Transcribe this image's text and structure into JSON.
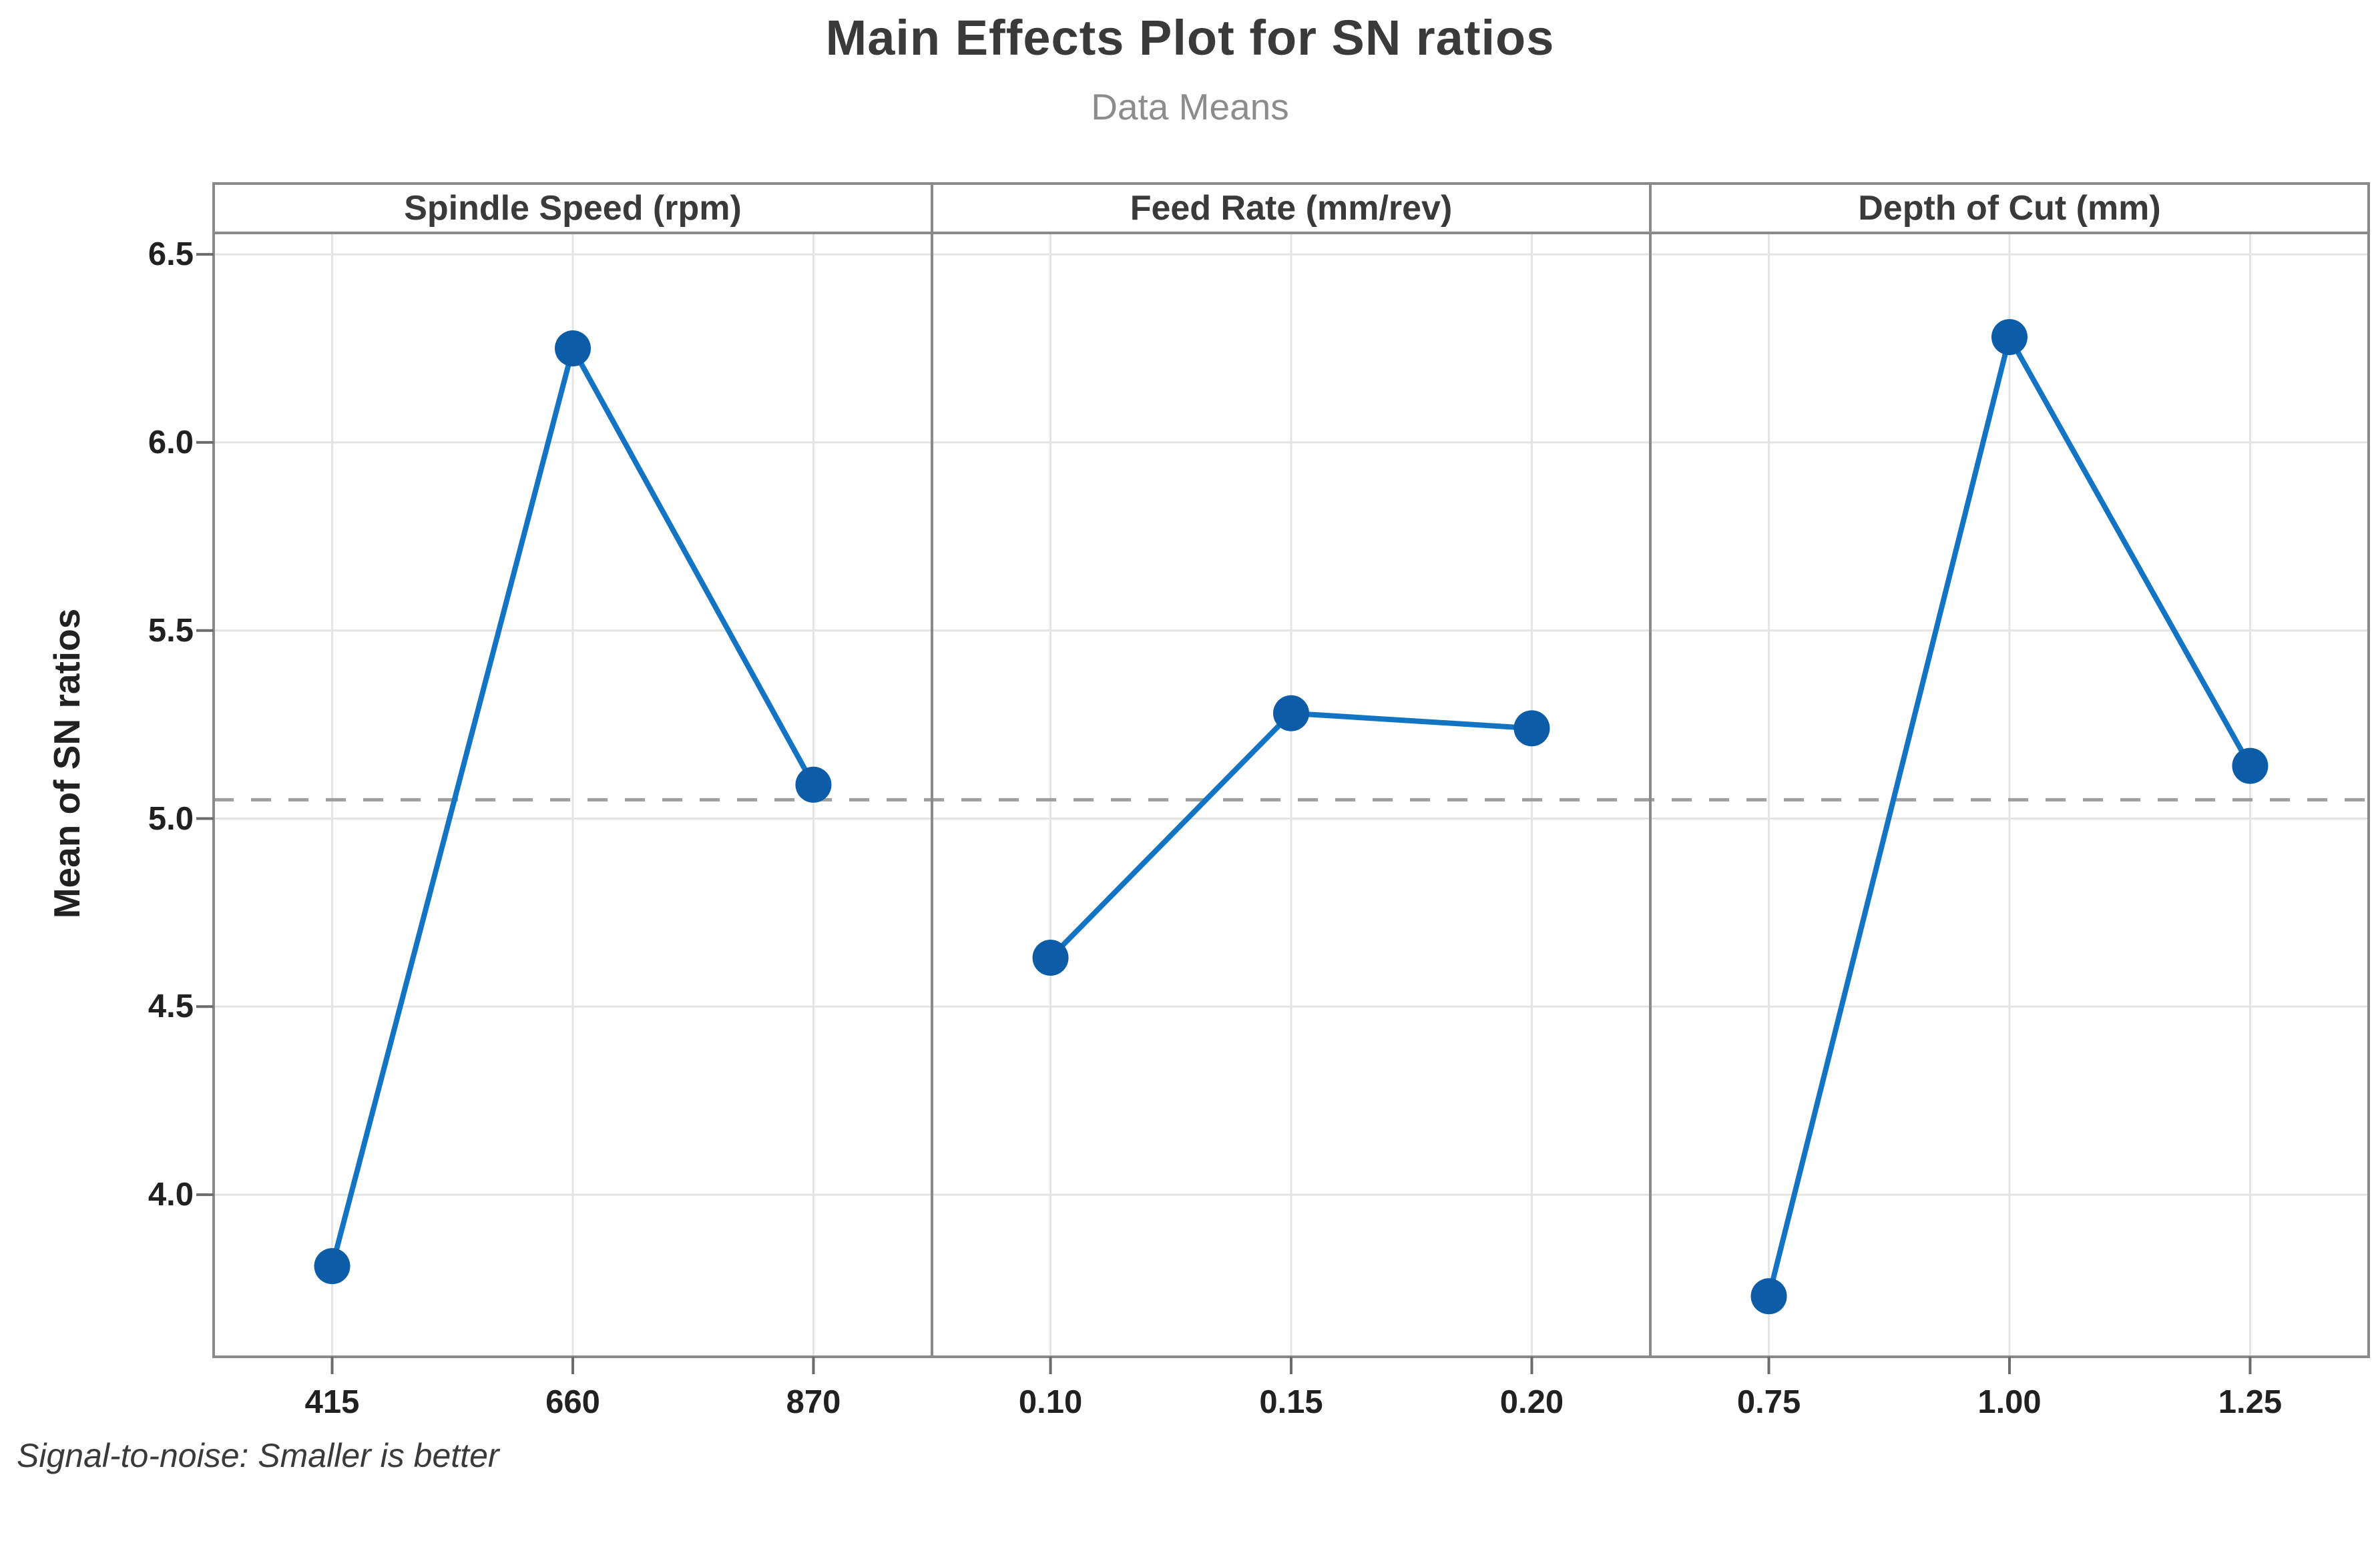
{
  "chart_data": {
    "type": "line",
    "title": "Main Effects Plot for SN ratios",
    "subtitle": "Data Means",
    "ylabel": "Mean of SN ratios",
    "footnote": "Signal-to-noise: Smaller is better",
    "ylim": [
      3.569,
      6.557
    ],
    "yticks": [
      "6.5",
      "6.0",
      "5.5",
      "5.0",
      "4.5",
      "4.0"
    ],
    "reference_line_mean": 5.05,
    "grid": true,
    "legend": "none",
    "panels": [
      {
        "label": "Spindle Speed (rpm)",
        "categories": [
          "415",
          "660",
          "870"
        ],
        "values": [
          3.81,
          6.25,
          5.09
        ]
      },
      {
        "label": "Feed Rate (mm/rev)",
        "categories": [
          "0.10",
          "0.15",
          "0.20"
        ],
        "values": [
          4.63,
          5.28,
          5.24
        ]
      },
      {
        "label": "Depth of Cut (mm)",
        "categories": [
          "0.75",
          "1.00",
          "1.25"
        ],
        "values": [
          3.73,
          6.28,
          5.14
        ]
      }
    ]
  },
  "colors": {
    "line": "#1474C4",
    "marker": "#0D5CA8",
    "frame": "#8A8A8A",
    "grid": "#E4E4E4",
    "reference_line": "#9E9E9E",
    "tick_mark": "#6B6B6B",
    "title_text": "#3A3A3A",
    "subtitle_text": "#8C8C8C",
    "panel_label_text": "#3A3A3A",
    "tick_text": "#212121",
    "footnote_text": "#3A3A3A"
  }
}
